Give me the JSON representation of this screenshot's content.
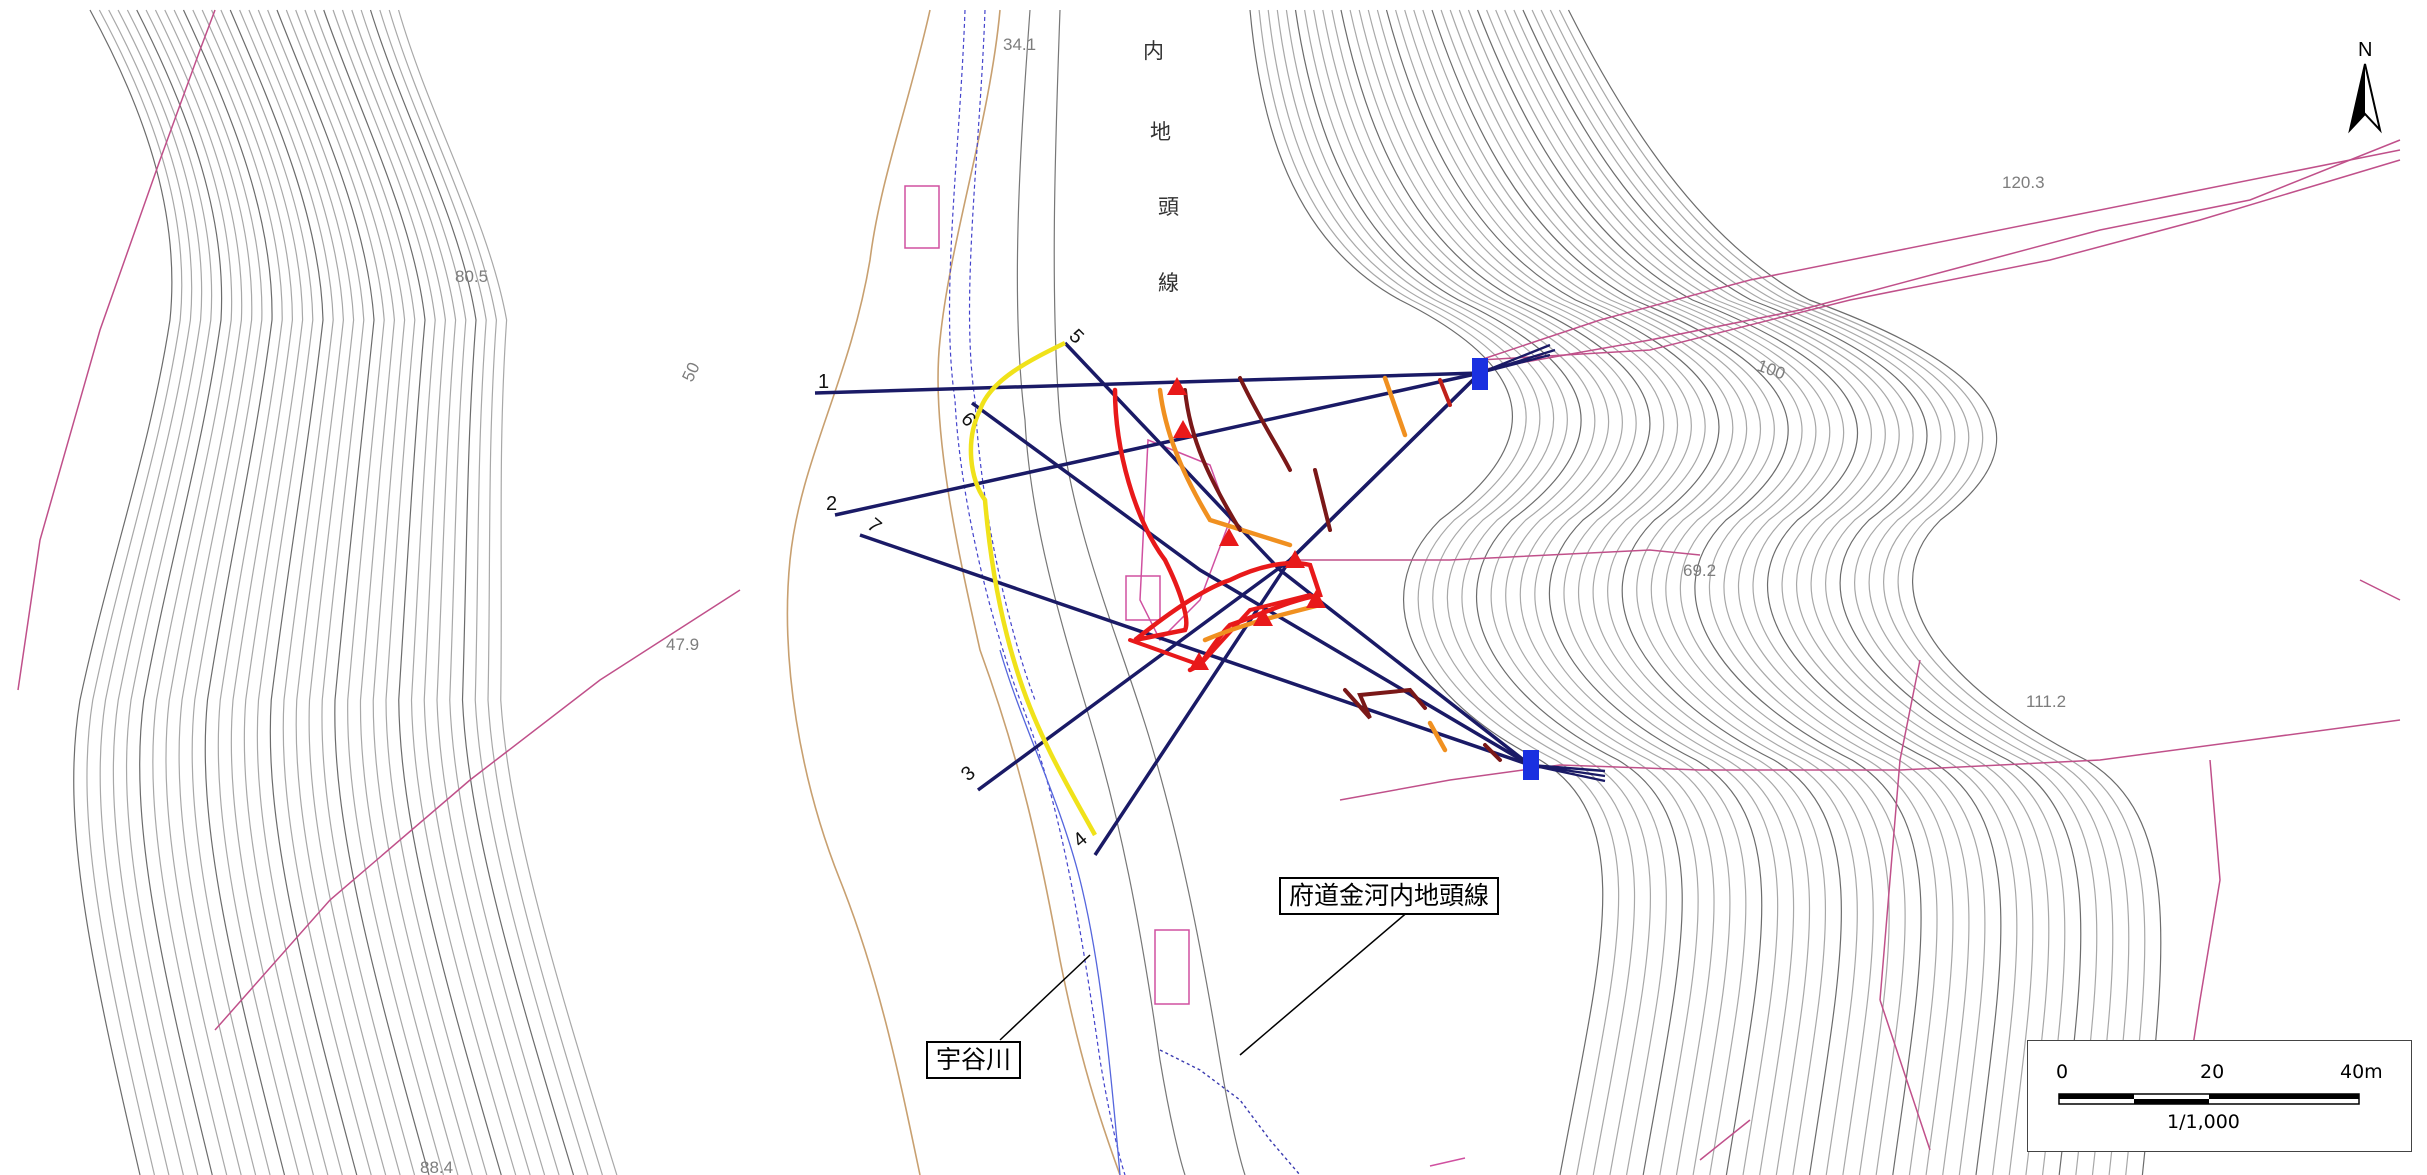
{
  "elevations": [
    "34.1",
    "80.5",
    "50",
    "47.9",
    "88.4",
    "100",
    "120.3",
    "69.2",
    "111.2"
  ],
  "road_vertical_label": [
    "内",
    "地",
    "頭",
    "線"
  ],
  "survey_lines": [
    "1",
    "2",
    "3",
    "4",
    "5",
    "6",
    "7"
  ],
  "callouts": {
    "river": "宇谷川",
    "road": "府道金河内地頭線"
  },
  "scale": {
    "start": "0",
    "mid": "20",
    "end": "40m",
    "ratio": "1/1,000"
  },
  "north": "N"
}
